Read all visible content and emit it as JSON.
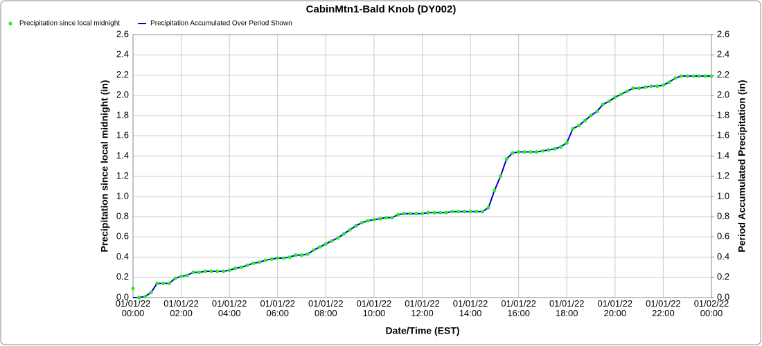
{
  "chart_data": {
    "type": "line",
    "title": "CabinMtn1-Bald Knob (DY002)",
    "x_label": "Date/Time (EST)",
    "y_label": "Precipitation since local midnight (in)",
    "y2_label": "Period Accumulated Precipitation (in)",
    "x": [
      0,
      0.25,
      0.5,
      0.75,
      1,
      1.25,
      1.5,
      1.75,
      2,
      2.25,
      2.5,
      2.75,
      3,
      3.25,
      3.5,
      3.75,
      4,
      4.25,
      4.5,
      4.75,
      5,
      5.25,
      5.5,
      5.75,
      6,
      6.25,
      6.5,
      6.75,
      7,
      7.25,
      7.5,
      7.75,
      8,
      8.25,
      8.5,
      8.75,
      9,
      9.25,
      9.5,
      9.75,
      10,
      10.25,
      10.5,
      10.75,
      11,
      11.25,
      11.5,
      11.75,
      12,
      12.25,
      12.5,
      12.75,
      13,
      13.25,
      13.5,
      13.75,
      14,
      14.25,
      14.5,
      14.75,
      15,
      15.25,
      15.5,
      15.75,
      16,
      16.25,
      16.5,
      16.75,
      17,
      17.25,
      17.5,
      17.75,
      18,
      18.25,
      18.5,
      18.75,
      19,
      19.25,
      19.5,
      19.75,
      20,
      20.25,
      20.5,
      20.75,
      21,
      21.25,
      21.5,
      21.75,
      22,
      22.25,
      22.5,
      22.75,
      23,
      23.25,
      23.5,
      23.75,
      24
    ],
    "series": [
      {
        "name": "Precipitation since local midnight",
        "color": "#22ee22",
        "style": "markers",
        "values": [
          0.09,
          0,
          0.01,
          0.05,
          0.14,
          0.14,
          0.14,
          0.19,
          0.21,
          0.22,
          0.25,
          0.25,
          0.26,
          0.26,
          0.26,
          0.26,
          0.27,
          0.29,
          0.3,
          0.32,
          0.34,
          0.35,
          0.37,
          0.38,
          0.39,
          0.39,
          0.4,
          0.42,
          0.42,
          0.43,
          0.47,
          0.5,
          0.53,
          0.56,
          0.59,
          0.63,
          0.67,
          0.71,
          0.74,
          0.76,
          0.77,
          0.78,
          0.79,
          0.79,
          0.82,
          0.83,
          0.83,
          0.83,
          0.83,
          0.84,
          0.84,
          0.84,
          0.84,
          0.85,
          0.85,
          0.85,
          0.85,
          0.85,
          0.85,
          0.89,
          1.06,
          1.2,
          1.37,
          1.43,
          1.44,
          1.44,
          1.44,
          1.44,
          1.45,
          1.46,
          1.47,
          1.49,
          1.53,
          1.67,
          1.7,
          1.75,
          1.8,
          1.84,
          1.91,
          1.94,
          1.98,
          2.01,
          2.04,
          2.07,
          2.07,
          2.08,
          2.09,
          2.09,
          2.1,
          2.13,
          2.17,
          2.19,
          2.19,
          2.19,
          2.19,
          2.19,
          2.19
        ]
      },
      {
        "name": "Precipitation Accumulated Over Period Shown",
        "color": "#0000cc",
        "style": "line",
        "axis": "y2",
        "values": [
          0,
          0,
          0.01,
          0.05,
          0.14,
          0.14,
          0.14,
          0.19,
          0.21,
          0.22,
          0.25,
          0.25,
          0.26,
          0.26,
          0.26,
          0.26,
          0.27,
          0.29,
          0.3,
          0.32,
          0.34,
          0.35,
          0.37,
          0.38,
          0.39,
          0.39,
          0.4,
          0.42,
          0.42,
          0.43,
          0.47,
          0.5,
          0.53,
          0.56,
          0.59,
          0.63,
          0.67,
          0.71,
          0.74,
          0.76,
          0.77,
          0.78,
          0.79,
          0.79,
          0.82,
          0.83,
          0.83,
          0.83,
          0.83,
          0.84,
          0.84,
          0.84,
          0.84,
          0.85,
          0.85,
          0.85,
          0.85,
          0.85,
          0.85,
          0.89,
          1.06,
          1.2,
          1.37,
          1.43,
          1.44,
          1.44,
          1.44,
          1.44,
          1.45,
          1.46,
          1.47,
          1.49,
          1.53,
          1.67,
          1.7,
          1.75,
          1.8,
          1.84,
          1.91,
          1.94,
          1.98,
          2.01,
          2.04,
          2.07,
          2.07,
          2.08,
          2.09,
          2.09,
          2.1,
          2.13,
          2.17,
          2.19,
          2.19,
          2.19,
          2.19,
          2.19,
          2.19
        ]
      }
    ],
    "xlim": [
      0,
      24
    ],
    "xticks": [
      {
        "value": 0,
        "label": "01/01/22 00:00"
      },
      {
        "value": 2,
        "label": "01/01/22 02:00"
      },
      {
        "value": 4,
        "label": "01/01/22 04:00"
      },
      {
        "value": 6,
        "label": "01/01/22 06:00"
      },
      {
        "value": 8,
        "label": "01/01/22 08:00"
      },
      {
        "value": 10,
        "label": "01/01/22 10:00"
      },
      {
        "value": 12,
        "label": "01/01/22 12:00"
      },
      {
        "value": 14,
        "label": "01/01/22 14:00"
      },
      {
        "value": 16,
        "label": "01/01/22 16:00"
      },
      {
        "value": 18,
        "label": "01/01/22 18:00"
      },
      {
        "value": 20,
        "label": "01/01/22 20:00"
      },
      {
        "value": 22,
        "label": "01/01/22 22:00"
      },
      {
        "value": 24,
        "label": "01/02/22 00:00"
      }
    ],
    "ylim": [
      0,
      2.6
    ],
    "yticks": [
      {
        "value": 0,
        "label": "0.0"
      },
      0.2,
      0.4,
      0.6,
      0.8,
      {
        "value": 1,
        "label": "1.0"
      },
      1.2,
      1.4,
      1.6,
      1.8,
      {
        "value": 2,
        "label": "2.0"
      },
      2.2,
      2.4,
      2.6
    ],
    "y2lim": [
      0,
      2.6
    ],
    "y2ticks": [
      {
        "value": 0,
        "label": "0.0"
      },
      0.2,
      0.4,
      0.6,
      0.8,
      {
        "value": 1,
        "label": "1.0"
      },
      1.2,
      1.4,
      1.6,
      1.8,
      {
        "value": 2,
        "label": "2.0"
      },
      2.2,
      2.4,
      2.6
    ],
    "grid": true,
    "legend": "top-left"
  }
}
